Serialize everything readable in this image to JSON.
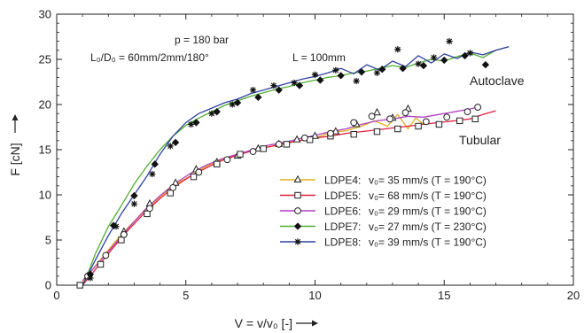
{
  "chart_data": {
    "type": "line",
    "xlabel": "V = v/v₀ [-]",
    "ylabel": "F [cN]",
    "xlim": [
      0,
      20
    ],
    "ylim": [
      0,
      30
    ],
    "xticks": [
      0,
      5,
      10,
      15,
      20
    ],
    "yticks": [
      0,
      5,
      10,
      15,
      20,
      25,
      30
    ],
    "grid": false,
    "legend_position": "bottom-right",
    "annotations": {
      "pressure": "p = 180 bar",
      "die": "L₀/D₀ = 60mm/2mm/180°",
      "length": "L = 100mm",
      "group_autoclave": "Autoclave",
      "group_tubular": "Tubular"
    },
    "series": [
      {
        "name": "LDPE4:",
        "detail": "v₀= 35 mm/s (T = 190°C)",
        "color": "#e0b020",
        "marker": "triangle",
        "x": [
          1.0,
          1.6,
          2.2,
          2.8,
          3.4,
          4.0,
          4.6,
          5.2,
          5.8,
          6.4,
          7.0,
          7.6,
          8.2,
          8.8,
          9.4,
          10.0,
          10.6,
          11.2,
          11.8,
          12.3,
          12.8,
          13.2,
          13.6,
          13.9,
          14.2
        ],
        "y": [
          0.3,
          2.5,
          4.6,
          6.5,
          8.2,
          9.8,
          11.2,
          12.1,
          13.2,
          13.9,
          14.4,
          15.0,
          15.3,
          15.6,
          16.0,
          16.3,
          16.9,
          17.1,
          17.6,
          18.2,
          17.6,
          18.9,
          17.3,
          18.5,
          17.8
        ],
        "marker_x": [
          1.2,
          2.6,
          3.6,
          4.6,
          5.4,
          6.2,
          7.0,
          7.8,
          8.6,
          9.3,
          10.0,
          10.8,
          11.6,
          12.4,
          13.0,
          13.6
        ],
        "marker_y": [
          1.0,
          5.9,
          9.0,
          11.3,
          12.8,
          13.6,
          14.3,
          15.1,
          15.6,
          16.1,
          16.5,
          17.0,
          17.8,
          19.1,
          18.5,
          19.5
        ]
      },
      {
        "name": "LDPE5:",
        "detail": "v₀= 68 mm/s (T = 190°C)",
        "color": "#e02040",
        "marker": "square",
        "x": [
          1.0,
          1.6,
          2.2,
          2.8,
          3.4,
          4.0,
          4.6,
          5.2,
          5.8,
          6.4,
          7.0,
          7.6,
          8.2,
          8.8,
          9.4,
          10.0,
          10.6,
          11.2,
          11.8,
          12.4,
          13.0,
          13.6,
          14.2,
          14.8,
          15.4,
          16.0,
          16.5,
          17.0
        ],
        "y": [
          0.0,
          2.1,
          4.2,
          6.2,
          8.0,
          9.6,
          11.0,
          12.1,
          13.0,
          13.8,
          14.4,
          14.9,
          15.3,
          15.7,
          16.0,
          16.3,
          16.5,
          16.8,
          17.0,
          17.2,
          17.4,
          17.6,
          17.8,
          18.0,
          18.2,
          18.4,
          18.9,
          19.3
        ],
        "marker_x": [
          0.9,
          1.7,
          2.5,
          3.5,
          4.4,
          5.3,
          6.2,
          7.1,
          8.0,
          8.9,
          9.8,
          10.6,
          11.5,
          12.4,
          13.2,
          14.0,
          14.8,
          15.6,
          16.2
        ],
        "marker_y": [
          0.0,
          2.3,
          5.0,
          7.9,
          10.2,
          12.0,
          13.4,
          14.5,
          15.1,
          15.6,
          16.1,
          16.5,
          16.7,
          17.0,
          17.3,
          17.6,
          17.8,
          18.2,
          18.4
        ]
      },
      {
        "name": "LDPE6:",
        "detail": "v₀= 29 mm/s (T = 190°C)",
        "color": "#b040c0",
        "marker": "circle",
        "x": [
          1.0,
          1.6,
          2.2,
          2.8,
          3.4,
          4.0,
          4.6,
          5.2,
          5.8,
          6.4,
          7.0,
          7.6,
          8.2,
          8.8,
          9.4,
          10.0,
          10.6,
          11.2,
          11.8,
          12.4,
          13.0,
          13.6,
          14.2,
          14.8,
          15.4,
          16.0,
          16.4
        ],
        "y": [
          0.5,
          2.4,
          4.4,
          6.4,
          8.3,
          9.9,
          11.3,
          12.4,
          13.3,
          14.0,
          14.5,
          15.0,
          15.5,
          15.8,
          16.2,
          16.6,
          17.0,
          17.3,
          17.8,
          18.2,
          18.4,
          18.7,
          18.6,
          18.9,
          19.2,
          19.5,
          19.8
        ],
        "marker_x": [
          1.2,
          1.9,
          2.6,
          3.6,
          4.5,
          5.5,
          6.6,
          7.6,
          8.6,
          9.6,
          10.6,
          11.5,
          12.2,
          12.9,
          13.5,
          14.3,
          15.1,
          15.9,
          16.3
        ],
        "marker_y": [
          1.0,
          3.3,
          5.6,
          8.5,
          10.8,
          12.5,
          13.9,
          14.8,
          15.6,
          16.3,
          16.8,
          18.0,
          18.7,
          18.4,
          19.1,
          18.1,
          18.6,
          19.2,
          19.7
        ]
      },
      {
        "name": "LDPE7:",
        "detail": "v₀= 27 mm/s (T = 230°C)",
        "color": "#50b030",
        "marker": "diamond",
        "x": [
          1.1,
          1.5,
          2.0,
          2.5,
          3.0,
          3.5,
          4.0,
          4.5,
          5.0,
          5.5,
          6.0,
          6.5,
          7.0,
          7.5,
          8.0,
          8.5,
          9.0,
          9.5,
          10.0,
          10.5,
          11.0,
          11.5,
          12.0,
          12.5,
          13.0,
          13.5,
          14.0,
          14.5,
          15.0,
          15.5,
          16.0,
          16.5,
          17.0,
          17.5
        ],
        "y": [
          0.5,
          3.5,
          6.5,
          8.8,
          11.2,
          13.2,
          15.0,
          16.5,
          17.7,
          18.5,
          19.2,
          19.9,
          20.4,
          20.9,
          21.3,
          21.7,
          22.0,
          22.4,
          22.7,
          23.0,
          23.2,
          23.5,
          23.7,
          24.0,
          24.3,
          24.1,
          24.6,
          25.0,
          24.8,
          25.3,
          25.7,
          25.2,
          26.0,
          26.4
        ],
        "marker_x": [
          1.3,
          2.2,
          3.0,
          3.8,
          4.6,
          5.4,
          6.2,
          7.0,
          7.8,
          8.6,
          9.4,
          10.2,
          11.0,
          11.8,
          12.6,
          13.4,
          14.2,
          15.0,
          15.8,
          16.6
        ],
        "marker_y": [
          1.2,
          6.6,
          9.9,
          13.4,
          15.8,
          18.0,
          19.2,
          20.2,
          20.8,
          21.6,
          22.1,
          22.7,
          23.2,
          23.6,
          23.9,
          24.0,
          24.3,
          24.9,
          25.4,
          24.4
        ]
      },
      {
        "name": "LDPE8:",
        "detail": "v₀= 39 mm/s (T = 190°C)",
        "color": "#3040a0",
        "marker": "asterisk",
        "x": [
          1.0,
          1.5,
          2.0,
          2.5,
          3.0,
          3.5,
          4.0,
          4.5,
          5.0,
          5.5,
          6.0,
          6.5,
          7.0,
          7.5,
          8.0,
          8.5,
          9.0,
          9.5,
          10.0,
          10.5,
          11.0,
          11.5,
          12.0,
          12.5,
          13.0,
          13.5,
          14.0,
          14.5,
          15.0,
          15.5,
          16.0,
          16.5,
          17.0,
          17.5
        ],
        "y": [
          0.0,
          2.8,
          5.5,
          7.9,
          10.0,
          12.1,
          14.5,
          16.5,
          18.0,
          19.0,
          19.6,
          20.2,
          20.6,
          21.2,
          21.6,
          22.0,
          22.4,
          22.8,
          23.1,
          23.5,
          24.0,
          23.4,
          24.4,
          23.8,
          24.8,
          24.2,
          25.4,
          24.6,
          25.6,
          25.1,
          25.8,
          25.5,
          26.0,
          26.4
        ],
        "marker_x": [
          1.3,
          2.3,
          3.0,
          3.7,
          4.4,
          5.2,
          6.0,
          6.8,
          7.6,
          8.4,
          9.2,
          10.0,
          10.8,
          11.6,
          12.4,
          13.2,
          14.0,
          14.6,
          15.2,
          16.0
        ],
        "marker_y": [
          0.8,
          6.5,
          9.0,
          12.3,
          15.4,
          17.8,
          19.0,
          20.0,
          21.6,
          22.1,
          22.4,
          23.3,
          23.8,
          22.6,
          23.5,
          26.1,
          24.5,
          25.2,
          27.0,
          25.7
        ]
      }
    ]
  }
}
